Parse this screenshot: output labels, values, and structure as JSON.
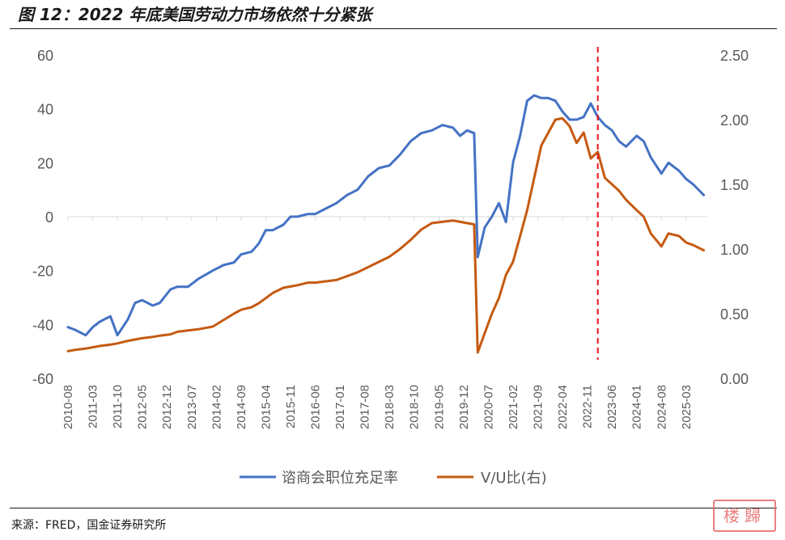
{
  "title": "图 12：2022 年底美国劳动力市场依然十分紧张",
  "source": "来源：FRED，国金证券研究所",
  "watermark": "楼歸",
  "chart_data": {
    "type": "line",
    "xticks": [
      "2010-08",
      "2011-03",
      "2011-10",
      "2012-05",
      "2012-12",
      "2013-07",
      "2014-02",
      "2014-09",
      "2015-04",
      "2015-11",
      "2016-06",
      "2017-01",
      "2017-08",
      "2018-03",
      "2018-10",
      "2019-05",
      "2019-12",
      "2020-07",
      "2021-02",
      "2021-09",
      "2022-04",
      "2022-11",
      "2023-06",
      "2024-01",
      "2024-08",
      "2025-03"
    ],
    "left_axis": {
      "ylim": [
        -60,
        60
      ],
      "ticks": [
        "60",
        "40",
        "20",
        "0",
        "-20",
        "-40",
        "-60"
      ],
      "values": [
        60,
        40,
        20,
        0,
        -20,
        -40,
        -60
      ]
    },
    "right_axis": {
      "ylim": [
        0,
        2.5
      ],
      "ticks": [
        "2.50",
        "2.00",
        "1.50",
        "1.00",
        "0.50",
        "0.00"
      ],
      "values": [
        2.5,
        2.0,
        1.5,
        1.0,
        0.5,
        0.0
      ]
    },
    "grid": false,
    "reference_line": {
      "x": "2023-02",
      "color": "#e8141b",
      "style": "dashed"
    },
    "zero_line": true,
    "legend_position": "bottom",
    "series": [
      {
        "name": "谘商会职位充足率",
        "axis": "left",
        "color": "#4472c4",
        "x": [
          "2010-08",
          "2010-10",
          "2011-01",
          "2011-03",
          "2011-05",
          "2011-08",
          "2011-10",
          "2012-01",
          "2012-03",
          "2012-05",
          "2012-08",
          "2012-10",
          "2013-01",
          "2013-03",
          "2013-06",
          "2013-09",
          "2014-01",
          "2014-04",
          "2014-07",
          "2014-09",
          "2014-12",
          "2015-02",
          "2015-04",
          "2015-06",
          "2015-09",
          "2015-11",
          "2016-01",
          "2016-04",
          "2016-06",
          "2016-09",
          "2016-12",
          "2017-03",
          "2017-06",
          "2017-09",
          "2017-12",
          "2018-03",
          "2018-06",
          "2018-09",
          "2018-12",
          "2019-03",
          "2019-06",
          "2019-09",
          "2019-11",
          "2020-01",
          "2020-03",
          "2020-04",
          "2020-06",
          "2020-08",
          "2020-10",
          "2020-12",
          "2021-02",
          "2021-04",
          "2021-06",
          "2021-08",
          "2021-10",
          "2021-12",
          "2022-02",
          "2022-04",
          "2022-06",
          "2022-08",
          "2022-10",
          "2022-12",
          "2023-02",
          "2023-04",
          "2023-06",
          "2023-08",
          "2023-10",
          "2024-01",
          "2024-03",
          "2024-05",
          "2024-08",
          "2024-10",
          "2025-01",
          "2025-03",
          "2025-05",
          "2025-08"
        ],
        "y": [
          -41,
          -42,
          -44,
          -41,
          -39,
          -37,
          -44,
          -38,
          -32,
          -31,
          -33,
          -32,
          -27,
          -26,
          -26,
          -23,
          -20,
          -18,
          -17,
          -14,
          -13,
          -10,
          -5,
          -5,
          -3,
          0,
          0,
          1,
          1,
          3,
          5,
          8,
          10,
          15,
          18,
          19,
          23,
          28,
          31,
          32,
          34,
          33,
          30,
          32,
          31,
          -15,
          -4,
          0,
          5,
          -2,
          20,
          30,
          43,
          45,
          44,
          44,
          43,
          39,
          36,
          36,
          37,
          42,
          37,
          34,
          32,
          28,
          26,
          30,
          28,
          22,
          16,
          20,
          17,
          14,
          12,
          8
        ]
      },
      {
        "name": "V/U比(右)",
        "axis": "right",
        "color": "#c55a11",
        "x": [
          "2010-08",
          "2010-10",
          "2011-01",
          "2011-03",
          "2011-05",
          "2011-08",
          "2011-10",
          "2012-01",
          "2012-03",
          "2012-05",
          "2012-08",
          "2012-10",
          "2013-01",
          "2013-03",
          "2013-06",
          "2013-09",
          "2014-01",
          "2014-04",
          "2014-07",
          "2014-09",
          "2014-12",
          "2015-02",
          "2015-04",
          "2015-06",
          "2015-09",
          "2015-11",
          "2016-01",
          "2016-04",
          "2016-06",
          "2016-09",
          "2016-12",
          "2017-03",
          "2017-06",
          "2017-09",
          "2017-12",
          "2018-03",
          "2018-06",
          "2018-09",
          "2018-12",
          "2019-03",
          "2019-06",
          "2019-09",
          "2019-11",
          "2020-01",
          "2020-03",
          "2020-04",
          "2020-06",
          "2020-08",
          "2020-10",
          "2020-12",
          "2021-02",
          "2021-04",
          "2021-06",
          "2021-08",
          "2021-10",
          "2021-12",
          "2022-02",
          "2022-04",
          "2022-06",
          "2022-08",
          "2022-10",
          "2022-12",
          "2023-02",
          "2023-04",
          "2023-06",
          "2023-08",
          "2023-10",
          "2024-01",
          "2024-03",
          "2024-05",
          "2024-08",
          "2024-10",
          "2025-01",
          "2025-03",
          "2025-05",
          "2025-08"
        ],
        "y": [
          0.21,
          0.22,
          0.23,
          0.24,
          0.25,
          0.26,
          0.27,
          0.29,
          0.3,
          0.31,
          0.32,
          0.33,
          0.34,
          0.36,
          0.37,
          0.38,
          0.4,
          0.45,
          0.5,
          0.53,
          0.55,
          0.58,
          0.62,
          0.66,
          0.7,
          0.71,
          0.72,
          0.74,
          0.74,
          0.75,
          0.76,
          0.79,
          0.82,
          0.86,
          0.9,
          0.94,
          1.0,
          1.07,
          1.15,
          1.2,
          1.21,
          1.22,
          1.21,
          1.2,
          1.19,
          0.2,
          0.35,
          0.5,
          0.62,
          0.8,
          0.9,
          1.1,
          1.3,
          1.55,
          1.8,
          1.9,
          2.0,
          2.01,
          1.95,
          1.82,
          1.9,
          1.7,
          1.75,
          1.55,
          1.5,
          1.45,
          1.38,
          1.3,
          1.25,
          1.12,
          1.02,
          1.12,
          1.1,
          1.05,
          1.03,
          0.99
        ]
      }
    ]
  }
}
